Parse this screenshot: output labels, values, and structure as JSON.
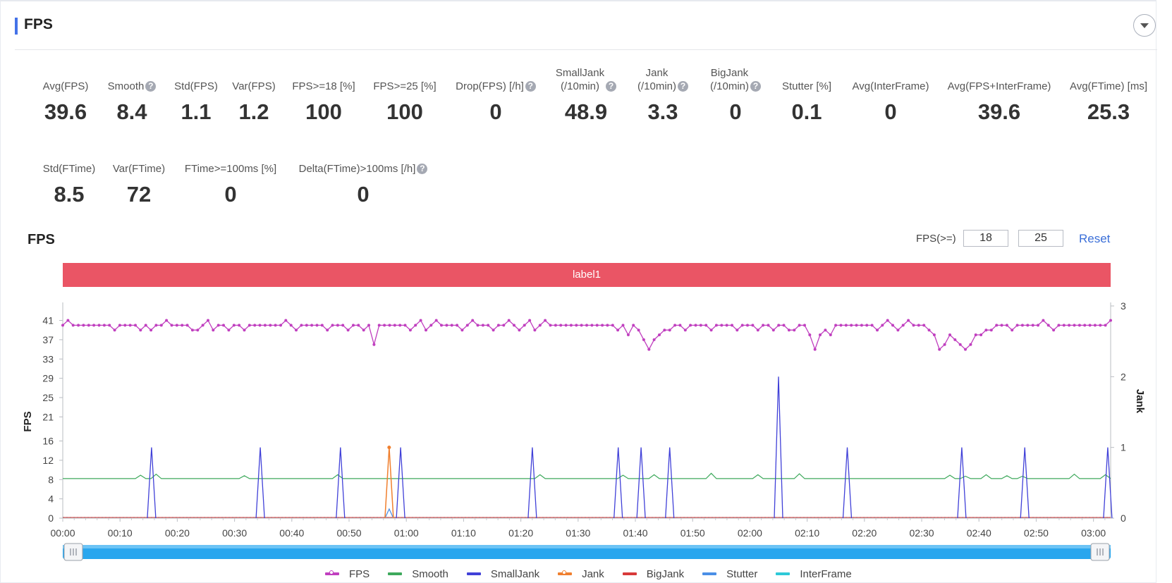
{
  "header": {
    "title": "FPS"
  },
  "metrics_row1": [
    {
      "label": "Avg(FPS)",
      "value": "39.6",
      "help": false
    },
    {
      "label": "Smooth",
      "value": "8.4",
      "help": true
    },
    {
      "label": "Std(FPS)",
      "value": "1.1",
      "help": false
    },
    {
      "label": "Var(FPS)",
      "value": "1.2",
      "help": false
    },
    {
      "label": "FPS>=18 [%]",
      "value": "100",
      "help": false
    },
    {
      "label": "FPS>=25 [%]",
      "value": "100",
      "help": false
    },
    {
      "label": "Drop(FPS) [/h]",
      "value": "0",
      "help": true
    },
    {
      "label": "SmallJank\n(/10min)",
      "value": "48.9",
      "help": true
    },
    {
      "label": "Jank\n(/10min)",
      "value": "3.3",
      "help": true
    },
    {
      "label": "BigJank\n(/10min)",
      "value": "0",
      "help": true
    },
    {
      "label": "Stutter [%]",
      "value": "0.1",
      "help": false
    },
    {
      "label": "Avg(InterFrame)",
      "value": "0",
      "help": false
    },
    {
      "label": "Avg(FPS+InterFrame)",
      "value": "39.6",
      "help": false
    },
    {
      "label": "Avg(FTime) [ms]",
      "value": "25.3",
      "help": false
    }
  ],
  "metrics_row2": [
    {
      "label": "Std(FTime)",
      "value": "8.5",
      "help": false
    },
    {
      "label": "Var(FTime)",
      "value": "72",
      "help": false
    },
    {
      "label": "FTime>=100ms [%]",
      "value": "0",
      "help": false
    },
    {
      "label": "Delta(FTime)>100ms [/h]",
      "value": "0",
      "help": true
    }
  ],
  "help_glyph": "?",
  "chart_panel": {
    "title": "FPS",
    "threshold_label": "FPS(>=)",
    "threshold_low": "18",
    "threshold_high": "25",
    "reset_label": "Reset",
    "label_bar": "label1"
  },
  "colors": {
    "fps": "#c03fbf",
    "smooth": "#3ea95c",
    "smalljank": "#4040d8",
    "jank": "#f07f2e",
    "bigjank": "#d83a3a",
    "stutter": "#4a8fe6",
    "interframe": "#2ec9d8",
    "label_bar": "#ea5565",
    "slider": "#29a6ee"
  },
  "chart_data": {
    "type": "line",
    "xlabel": "",
    "ylabel": "FPS",
    "y2label": "Jank",
    "ylim": [
      0,
      44
    ],
    "y2lim": [
      0,
      3
    ],
    "yticks": [
      "0",
      "4",
      "8",
      "12",
      "16",
      "21",
      "25",
      "29",
      "33",
      "37",
      "41"
    ],
    "yticks_values": [
      0,
      4,
      8,
      12,
      16,
      21,
      25,
      29,
      33,
      37,
      41
    ],
    "y2ticks": [
      "0",
      "1",
      "2",
      "3"
    ],
    "xticks": [
      "00:00",
      "00:10",
      "00:20",
      "00:30",
      "00:40",
      "00:50",
      "01:00",
      "01:10",
      "01:20",
      "01:30",
      "01:40",
      "01:50",
      "02:00",
      "02:10",
      "02:20",
      "02:30",
      "02:40",
      "02:50",
      "03:00"
    ],
    "xlim_seconds": [
      0,
      183
    ],
    "legend_position": "bottom",
    "series": [
      {
        "name": "FPS",
        "axis": "left",
        "values": [
          40,
          41,
          40,
          40,
          40,
          40,
          40,
          40,
          40,
          40,
          39,
          40,
          40,
          40,
          40,
          39,
          40,
          39,
          40,
          40,
          41,
          40,
          40,
          40,
          40,
          39,
          39,
          40,
          41,
          39,
          40,
          40,
          39,
          40,
          40,
          39,
          40,
          40,
          40,
          40,
          40,
          40,
          40,
          41,
          40,
          39,
          40,
          40,
          40,
          40,
          40,
          39,
          40,
          40,
          40,
          39,
          40,
          40,
          39,
          40,
          36,
          40,
          40,
          40,
          40,
          40,
          40,
          39,
          40,
          41,
          39,
          40,
          41,
          40,
          40,
          40,
          40,
          39,
          40,
          41,
          40,
          40,
          40,
          39,
          40,
          40,
          41,
          40,
          39,
          40,
          41,
          39,
          40,
          41,
          40,
          40,
          40,
          40,
          40,
          40,
          40,
          40,
          40,
          40,
          40,
          40,
          40,
          39,
          40,
          38,
          40,
          39,
          37,
          35,
          37,
          38,
          39,
          39,
          40,
          40,
          39,
          40,
          40,
          40,
          40,
          39,
          40,
          40,
          40,
          40,
          39,
          40,
          40,
          40,
          39,
          40,
          40,
          39,
          40,
          40,
          39,
          39,
          40,
          40,
          38,
          35,
          38,
          39,
          38,
          40,
          40,
          40,
          40,
          40,
          40,
          40,
          40,
          39,
          40,
          41,
          40,
          39,
          40,
          41,
          40,
          40,
          40,
          39,
          38,
          35,
          36,
          38,
          37,
          36,
          35,
          36,
          38,
          38,
          39,
          39,
          40,
          40,
          40,
          39,
          40,
          40,
          40,
          40,
          40,
          41,
          40,
          39,
          40,
          40,
          40,
          40,
          40,
          40,
          40,
          40,
          40,
          40,
          41
        ]
      },
      {
        "name": "Smooth",
        "axis": "left",
        "values": [
          8.2,
          8.2,
          8.2,
          8.2,
          8.2,
          8.2,
          8.2,
          8.2,
          8.2,
          8.2,
          8.3,
          8.2,
          8.2,
          8.2,
          8.2,
          8.2,
          8.2,
          8.2,
          8.2,
          8.3,
          8.2,
          8.2,
          8.2,
          8.2,
          8.2,
          8.2,
          8.2,
          8.2,
          8.2,
          8.2,
          8.3,
          8.2,
          8.2,
          8.2,
          8.2,
          8.2,
          8.2,
          8.2,
          8.2,
          8.2,
          8.2,
          8.2,
          8.2,
          8.2,
          8.2,
          8.2,
          8.2,
          8.2,
          8.2,
          8.2,
          8.2,
          8.2,
          8.2,
          8.2,
          8.2,
          8.2,
          8.2,
          8.2,
          8.2,
          8.2,
          8.2,
          8.2,
          8.2,
          8.2,
          8.2,
          8.2,
          8.2,
          8.2,
          8.2,
          8.2,
          8.2,
          8.2,
          8.2,
          8.2,
          8.2,
          8.2,
          8.2,
          8.2,
          8.2,
          8.2,
          8.2,
          8.2,
          8.2,
          8.2,
          8.2,
          8.2,
          8.2,
          8.2,
          8.2,
          8.2,
          8.2,
          8.2,
          8.2,
          8.2,
          8.2,
          8.2,
          8.2,
          8.2,
          8.2,
          8.2,
          8.2,
          8.2,
          8.2,
          8.2,
          8.2,
          8.2,
          8.2,
          8.2,
          8.2,
          8.2,
          8.2,
          8.2,
          8.2,
          8.2,
          8.2,
          8.2,
          8.2,
          8.2,
          8.2,
          8.2,
          8.2,
          8.2,
          8.2,
          8.2,
          8.2,
          8.2,
          8.2,
          8.2,
          8.2,
          8.2,
          8.2,
          8.2,
          8.2,
          8.2,
          8.2,
          8.2,
          8.2,
          8.2,
          8.2,
          8.2,
          8.2,
          8.2,
          8.2,
          8.2,
          8.2,
          8.2,
          8.2,
          8.2,
          8.2,
          8.2,
          8.2,
          8.2,
          8.2,
          8.2,
          8.2,
          8.2,
          8.2,
          8.2,
          8.2,
          8.2,
          8.2,
          8.2,
          8.2,
          8.2,
          8.2,
          8.2,
          8.2,
          8.2,
          8.2,
          8.2,
          8.2,
          8.2,
          8.2,
          8.2,
          8.2,
          8.2,
          8.2,
          8.2,
          8.2,
          8.2,
          8.2,
          8.2,
          8.2,
          8.2,
          8.2,
          8.2,
          8.2,
          8.2,
          8.2,
          8.2,
          8.2,
          8.2,
          8.2,
          8.2,
          8.2,
          8.2,
          8.2,
          8.2,
          8.2,
          8.2,
          8.2
        ]
      },
      {
        "name": "SmallJank",
        "axis": "right",
        "values": []
      },
      {
        "name": "Jank",
        "axis": "right",
        "values": []
      },
      {
        "name": "BigJank",
        "axis": "right",
        "values": []
      },
      {
        "name": "Stutter",
        "axis": "right",
        "values": []
      },
      {
        "name": "InterFrame",
        "axis": "right",
        "values": []
      }
    ],
    "smooth_bumps": [
      [
        14,
        8.9
      ],
      [
        16,
        9.1
      ],
      [
        32,
        8.8
      ],
      [
        48,
        9.0
      ],
      [
        83,
        9.0
      ],
      [
        98,
        8.9
      ],
      [
        103,
        9.0
      ],
      [
        113,
        9.3
      ],
      [
        121,
        9.0
      ],
      [
        129,
        9.2
      ],
      [
        155,
        8.9
      ],
      [
        158,
        8.7
      ],
      [
        161,
        9.0
      ],
      [
        165,
        8.8
      ],
      [
        168,
        8.7
      ],
      [
        177,
        9.1
      ],
      [
        182,
        9.0
      ]
    ],
    "smalljank_spikes": [
      [
        15.5,
        1
      ],
      [
        34.5,
        1
      ],
      [
        48.5,
        1
      ],
      [
        59,
        1
      ],
      [
        82,
        1
      ],
      [
        97,
        1
      ],
      [
        101,
        1
      ],
      [
        106,
        1
      ],
      [
        125,
        2
      ],
      [
        137,
        1
      ],
      [
        157,
        1
      ],
      [
        168,
        1
      ],
      [
        182.5,
        1
      ]
    ],
    "jank_spikes": [
      [
        57,
        1
      ]
    ],
    "stutter_spikes": [
      [
        57,
        0.13
      ]
    ],
    "slider_range": [
      "00:00",
      "03:03"
    ]
  },
  "legend": [
    "FPS",
    "Smooth",
    "SmallJank",
    "Jank",
    "BigJank",
    "Stutter",
    "InterFrame"
  ]
}
